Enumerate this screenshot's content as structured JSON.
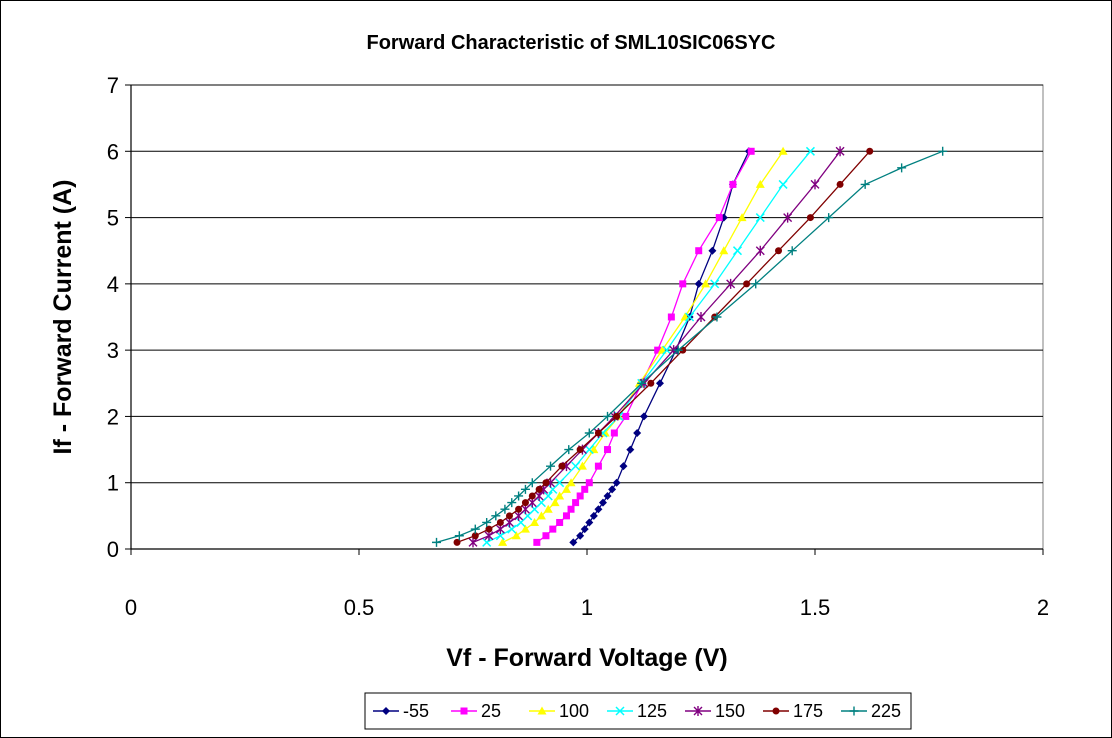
{
  "chart_data": {
    "type": "line",
    "title": "Forward  Characteristic of SML10SIC06SYC",
    "xlabel": "Vf - Forward Voltage (V)",
    "ylabel": "If - Forward Current (A)",
    "xlim": [
      0,
      2
    ],
    "ylim": [
      0,
      7
    ],
    "xticks": [
      0,
      0.5,
      1,
      1.5,
      2
    ],
    "xtick_labels": [
      "0",
      "0.5",
      "1",
      "1.5",
      "2"
    ],
    "yticks": [
      0,
      1,
      2,
      3,
      4,
      5,
      6,
      7
    ],
    "ytick_labels": [
      "0",
      "1",
      "2",
      "3",
      "4",
      "5",
      "6",
      "7"
    ],
    "grid": "horizontal",
    "legend_position": "bottom",
    "series": [
      {
        "name": "-55",
        "color": "#000080",
        "marker": "diamond",
        "points": [
          [
            0.97,
            0.1
          ],
          [
            0.985,
            0.2
          ],
          [
            0.995,
            0.3
          ],
          [
            1.005,
            0.4
          ],
          [
            1.015,
            0.5
          ],
          [
            1.025,
            0.6
          ],
          [
            1.035,
            0.7
          ],
          [
            1.045,
            0.8
          ],
          [
            1.055,
            0.9
          ],
          [
            1.065,
            1.0
          ],
          [
            1.08,
            1.25
          ],
          [
            1.095,
            1.5
          ],
          [
            1.11,
            1.75
          ],
          [
            1.125,
            2.0
          ],
          [
            1.16,
            2.5
          ],
          [
            1.195,
            3.0
          ],
          [
            1.225,
            3.5
          ],
          [
            1.245,
            4.0
          ],
          [
            1.275,
            4.5
          ],
          [
            1.3,
            5.0
          ],
          [
            1.32,
            5.5
          ],
          [
            1.355,
            6.0
          ]
        ]
      },
      {
        "name": "25",
        "color": "#ff00ff",
        "marker": "square",
        "points": [
          [
            0.89,
            0.1
          ],
          [
            0.91,
            0.2
          ],
          [
            0.925,
            0.3
          ],
          [
            0.94,
            0.4
          ],
          [
            0.955,
            0.5
          ],
          [
            0.965,
            0.6
          ],
          [
            0.975,
            0.7
          ],
          [
            0.985,
            0.8
          ],
          [
            0.995,
            0.9
          ],
          [
            1.005,
            1.0
          ],
          [
            1.025,
            1.25
          ],
          [
            1.045,
            1.5
          ],
          [
            1.06,
            1.75
          ],
          [
            1.085,
            2.0
          ],
          [
            1.12,
            2.5
          ],
          [
            1.155,
            3.0
          ],
          [
            1.185,
            3.5
          ],
          [
            1.21,
            4.0
          ],
          [
            1.245,
            4.5
          ],
          [
            1.29,
            5.0
          ],
          [
            1.32,
            5.5
          ],
          [
            1.36,
            6.0
          ]
        ]
      },
      {
        "name": "100",
        "color": "#ffff00",
        "marker": "triangle",
        "points": [
          [
            0.815,
            0.1
          ],
          [
            0.845,
            0.2
          ],
          [
            0.865,
            0.3
          ],
          [
            0.885,
            0.4
          ],
          [
            0.9,
            0.5
          ],
          [
            0.915,
            0.6
          ],
          [
            0.93,
            0.7
          ],
          [
            0.94,
            0.8
          ],
          [
            0.955,
            0.9
          ],
          [
            0.965,
            1.0
          ],
          [
            0.99,
            1.25
          ],
          [
            1.015,
            1.5
          ],
          [
            1.04,
            1.75
          ],
          [
            1.07,
            2.0
          ],
          [
            1.115,
            2.5
          ],
          [
            1.165,
            3.0
          ],
          [
            1.215,
            3.5
          ],
          [
            1.26,
            4.0
          ],
          [
            1.3,
            4.5
          ],
          [
            1.34,
            5.0
          ],
          [
            1.38,
            5.5
          ],
          [
            1.43,
            6.0
          ]
        ]
      },
      {
        "name": "125",
        "color": "#00ffff",
        "marker": "x",
        "points": [
          [
            0.78,
            0.1
          ],
          [
            0.81,
            0.2
          ],
          [
            0.835,
            0.3
          ],
          [
            0.855,
            0.4
          ],
          [
            0.87,
            0.5
          ],
          [
            0.885,
            0.6
          ],
          [
            0.9,
            0.7
          ],
          [
            0.915,
            0.8
          ],
          [
            0.925,
            0.9
          ],
          [
            0.94,
            1.0
          ],
          [
            0.975,
            1.25
          ],
          [
            1.005,
            1.5
          ],
          [
            1.035,
            1.75
          ],
          [
            1.07,
            2.0
          ],
          [
            1.12,
            2.5
          ],
          [
            1.175,
            3.0
          ],
          [
            1.225,
            3.5
          ],
          [
            1.28,
            4.0
          ],
          [
            1.33,
            4.5
          ],
          [
            1.38,
            5.0
          ],
          [
            1.43,
            5.5
          ],
          [
            1.49,
            6.0
          ]
        ]
      },
      {
        "name": "150",
        "color": "#800080",
        "marker": "star",
        "points": [
          [
            0.75,
            0.1
          ],
          [
            0.785,
            0.2
          ],
          [
            0.81,
            0.3
          ],
          [
            0.83,
            0.4
          ],
          [
            0.85,
            0.5
          ],
          [
            0.865,
            0.6
          ],
          [
            0.88,
            0.7
          ],
          [
            0.895,
            0.8
          ],
          [
            0.905,
            0.9
          ],
          [
            0.92,
            1.0
          ],
          [
            0.955,
            1.25
          ],
          [
            0.99,
            1.5
          ],
          [
            1.025,
            1.75
          ],
          [
            1.06,
            2.0
          ],
          [
            1.125,
            2.5
          ],
          [
            1.19,
            3.0
          ],
          [
            1.25,
            3.5
          ],
          [
            1.315,
            4.0
          ],
          [
            1.38,
            4.5
          ],
          [
            1.44,
            5.0
          ],
          [
            1.5,
            5.5
          ],
          [
            1.555,
            6.0
          ]
        ]
      },
      {
        "name": "175",
        "color": "#800000",
        "marker": "circle",
        "points": [
          [
            0.715,
            0.1
          ],
          [
            0.755,
            0.2
          ],
          [
            0.785,
            0.3
          ],
          [
            0.81,
            0.4
          ],
          [
            0.83,
            0.5
          ],
          [
            0.85,
            0.6
          ],
          [
            0.865,
            0.7
          ],
          [
            0.88,
            0.8
          ],
          [
            0.895,
            0.9
          ],
          [
            0.91,
            1.0
          ],
          [
            0.945,
            1.25
          ],
          [
            0.985,
            1.5
          ],
          [
            1.025,
            1.75
          ],
          [
            1.065,
            2.0
          ],
          [
            1.14,
            2.5
          ],
          [
            1.21,
            3.0
          ],
          [
            1.28,
            3.5
          ],
          [
            1.35,
            4.0
          ],
          [
            1.42,
            4.5
          ],
          [
            1.49,
            5.0
          ],
          [
            1.555,
            5.5
          ],
          [
            1.62,
            6.0
          ]
        ]
      },
      {
        "name": "225",
        "color": "#008080",
        "marker": "plus",
        "points": [
          [
            0.67,
            0.1
          ],
          [
            0.72,
            0.2
          ],
          [
            0.755,
            0.3
          ],
          [
            0.78,
            0.4
          ],
          [
            0.8,
            0.5
          ],
          [
            0.82,
            0.6
          ],
          [
            0.835,
            0.7
          ],
          [
            0.85,
            0.8
          ],
          [
            0.865,
            0.9
          ],
          [
            0.88,
            1.0
          ],
          [
            0.92,
            1.25
          ],
          [
            0.96,
            1.5
          ],
          [
            1.005,
            1.75
          ],
          [
            1.045,
            2.0
          ],
          [
            1.12,
            2.5
          ],
          [
            1.2,
            3.0
          ],
          [
            1.285,
            3.5
          ],
          [
            1.37,
            4.0
          ],
          [
            1.45,
            4.5
          ],
          [
            1.53,
            5.0
          ],
          [
            1.61,
            5.5
          ],
          [
            1.69,
            5.75
          ],
          [
            1.78,
            6.0
          ]
        ]
      }
    ]
  }
}
